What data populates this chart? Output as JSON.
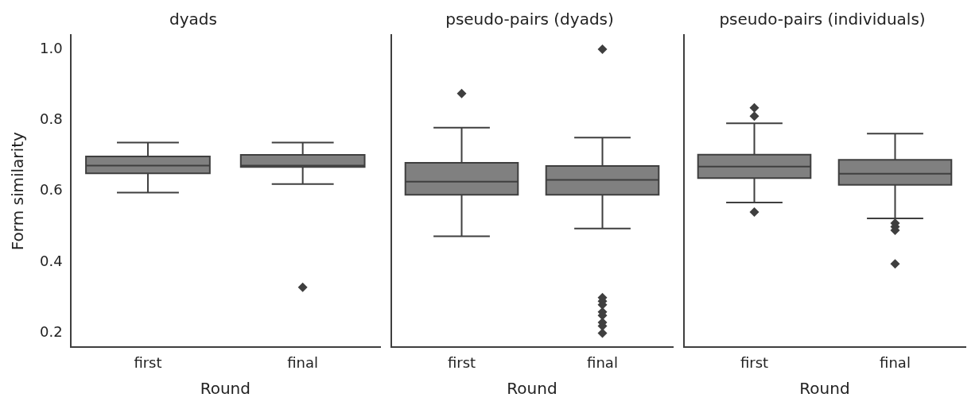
{
  "chart_data": [
    {
      "type": "box",
      "title": "dyads",
      "xlabel": "Round",
      "ylabel": "Form similarity",
      "categories": [
        "first",
        "final"
      ],
      "ylim": [
        0.16,
        1.04
      ],
      "yticks": [
        0.2,
        0.4,
        0.6,
        0.8,
        {
          "value": 1.0,
          "label": "1.0"
        }
      ],
      "marker": "diamond",
      "grid": false,
      "series": [
        {
          "color": "#808080",
          "boxes": [
            {
              "low": 0.596,
              "q1": 0.65,
              "median": 0.672,
              "q3": 0.698,
              "high": 0.737
            },
            {
              "low": 0.62,
              "q1": 0.668,
              "median": 0.672,
              "q3": 0.702,
              "high": 0.737,
              "outliers": [
                0.329
              ]
            }
          ]
        }
      ]
    },
    {
      "type": "box",
      "title": "pseudo-pairs (dyads)",
      "xlabel": "Round",
      "categories": [
        "first",
        "final"
      ],
      "ylim": [
        0.16,
        1.04
      ],
      "yticks": [
        0.2,
        0.4,
        0.6,
        0.8,
        1.0
      ],
      "tick_labels": "x",
      "marker": "diamond",
      "grid": false,
      "series": [
        {
          "color": "#808080",
          "boxes": [
            {
              "low": 0.473,
              "q1": 0.59,
              "median": 0.627,
              "q3": 0.68,
              "high": 0.779,
              "outliers": [
                0.875
              ]
            },
            {
              "low": 0.495,
              "q1": 0.59,
              "median": 0.632,
              "q3": 0.671,
              "high": 0.751,
              "outliers": [
                1.0,
                0.3,
                0.29,
                0.28,
                0.26,
                0.25,
                0.23,
                0.22,
                0.2
              ]
            }
          ]
        }
      ]
    },
    {
      "type": "box",
      "title": "pseudo-pairs (individuals)",
      "xlabel": "Round",
      "categories": [
        "first",
        "final"
      ],
      "ylim": [
        0.16,
        1.04
      ],
      "yticks": [
        0.2,
        0.4,
        0.6,
        0.8,
        1.0
      ],
      "tick_labels": "x",
      "marker": "diamond",
      "grid": false,
      "series": [
        {
          "color": "#808080",
          "boxes": [
            {
              "low": 0.568,
              "q1": 0.637,
              "median": 0.669,
              "q3": 0.703,
              "high": 0.791,
              "outliers": [
                0.835,
                0.811,
                0.541
              ]
            },
            {
              "low": 0.523,
              "q1": 0.618,
              "median": 0.649,
              "q3": 0.688,
              "high": 0.762,
              "outliers": [
                0.51,
                0.5,
                0.49,
                0.395
              ]
            }
          ]
        }
      ]
    }
  ]
}
